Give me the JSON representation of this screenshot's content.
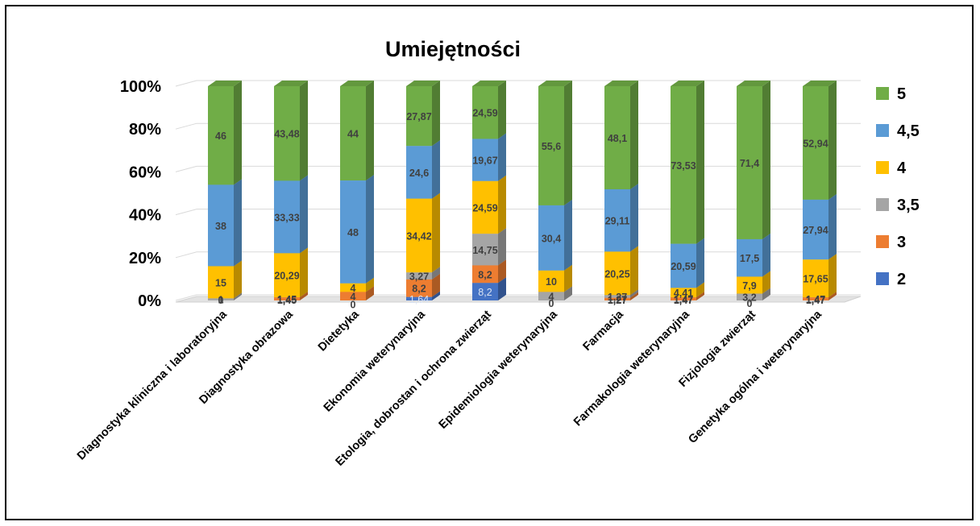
{
  "chart_data": {
    "type": "bar",
    "stacked": "percent",
    "three_d": true,
    "title": "Umiejętności",
    "categories": [
      "Diagnostyka kliniczna i laboratoryjna",
      "Diagnostyka obrazowa",
      "Dietetyka",
      "Ekonomia weterynaryjna",
      "Etologia, dobrostan i ochrona zwierząt",
      "Epidemiologia weterynaryjna",
      "Farmacja",
      "Farmakologia weterynaryjna",
      "Fizjologia zwierząt",
      "Genetyka ogólna i weterynaryjna"
    ],
    "yticks": [
      "0%",
      "20%",
      "40%",
      "60%",
      "80%",
      "100%"
    ],
    "ylim": [
      0,
      100
    ],
    "grid": true,
    "legend_position": "right",
    "series": [
      {
        "name": "2",
        "color": "#4472c4",
        "values": [
          0,
          0,
          0,
          1.64,
          8.2,
          0,
          0,
          0,
          0,
          0
        ],
        "labels": [
          "0",
          "",
          "",
          "1,64",
          "8,2",
          "",
          "",
          "",
          "",
          ""
        ]
      },
      {
        "name": "3",
        "color": "#ed7d31",
        "values": [
          0,
          1.45,
          4,
          8.2,
          8.2,
          0,
          1.27,
          1.47,
          0,
          1.47
        ],
        "labels": [
          "0",
          "1,45",
          "4",
          "8,2",
          "8,2",
          "",
          "1,27",
          "1,47",
          "",
          "1,47"
        ]
      },
      {
        "name": "3,5",
        "color": "#a5a5a5",
        "values": [
          1,
          0,
          0,
          3.27,
          14.75,
          4,
          1.27,
          0,
          3.2,
          0
        ],
        "labels": [
          "1",
          "",
          "",
          "3,27",
          "14,75",
          "4",
          "1,27",
          "",
          "3,2",
          ""
        ]
      },
      {
        "name": "4",
        "color": "#ffc000",
        "values": [
          15,
          20.29,
          4,
          34.42,
          24.59,
          10,
          20.25,
          4.41,
          7.9,
          17.65
        ],
        "labels": [
          "15",
          "20,29",
          "4",
          "34,42",
          "24,59",
          "10",
          "20,25",
          "4,41",
          "7,9",
          "17,65"
        ]
      },
      {
        "name": "4,5",
        "color": "#5b9bd5",
        "values": [
          38,
          33.33,
          48,
          24.6,
          19.67,
          30.4,
          29.11,
          20.59,
          17.5,
          27.94
        ],
        "labels": [
          "38",
          "33,33",
          "48",
          "24,6",
          "19,67",
          "30,4",
          "29,11",
          "20,59",
          "17,5",
          "27,94"
        ]
      },
      {
        "name": "5",
        "color": "#70ad47",
        "values": [
          46,
          43.48,
          44,
          27.87,
          24.59,
          55.6,
          48.1,
          73.53,
          71.4,
          52.94
        ],
        "labels": [
          "46",
          "43,48",
          "44",
          "27,87",
          "24,59",
          "55,6",
          "48,1",
          "73,53",
          "71,4",
          "52,94"
        ]
      }
    ],
    "extra_labels": [
      {
        "category": 1,
        "text": "1,45",
        "y": 0.3
      },
      {
        "category": 2,
        "text": "0",
        "y": -1.6
      },
      {
        "category": 5,
        "text": "0",
        "y": -1.2
      },
      {
        "category": 6,
        "text": "1,27",
        "y": 0.4
      },
      {
        "category": 7,
        "text": "1,47",
        "y": 0.4
      },
      {
        "category": 8,
        "text": "0",
        "y": -1.2
      },
      {
        "category": 9,
        "text": "1,47",
        "y": 0.4
      }
    ]
  }
}
